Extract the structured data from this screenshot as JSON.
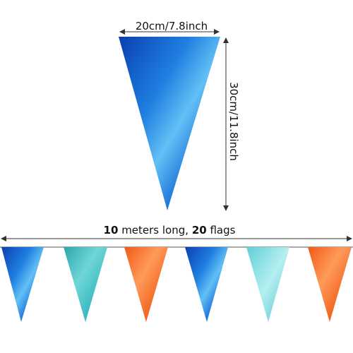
{
  "dimensions": {
    "width": "20cm/7.8inch",
    "height": "30cm/11.8inch",
    "summary": {
      "length": 10,
      "length_text": " meters long, ",
      "count": 20,
      "count_text": " flags"
    }
  }
}
